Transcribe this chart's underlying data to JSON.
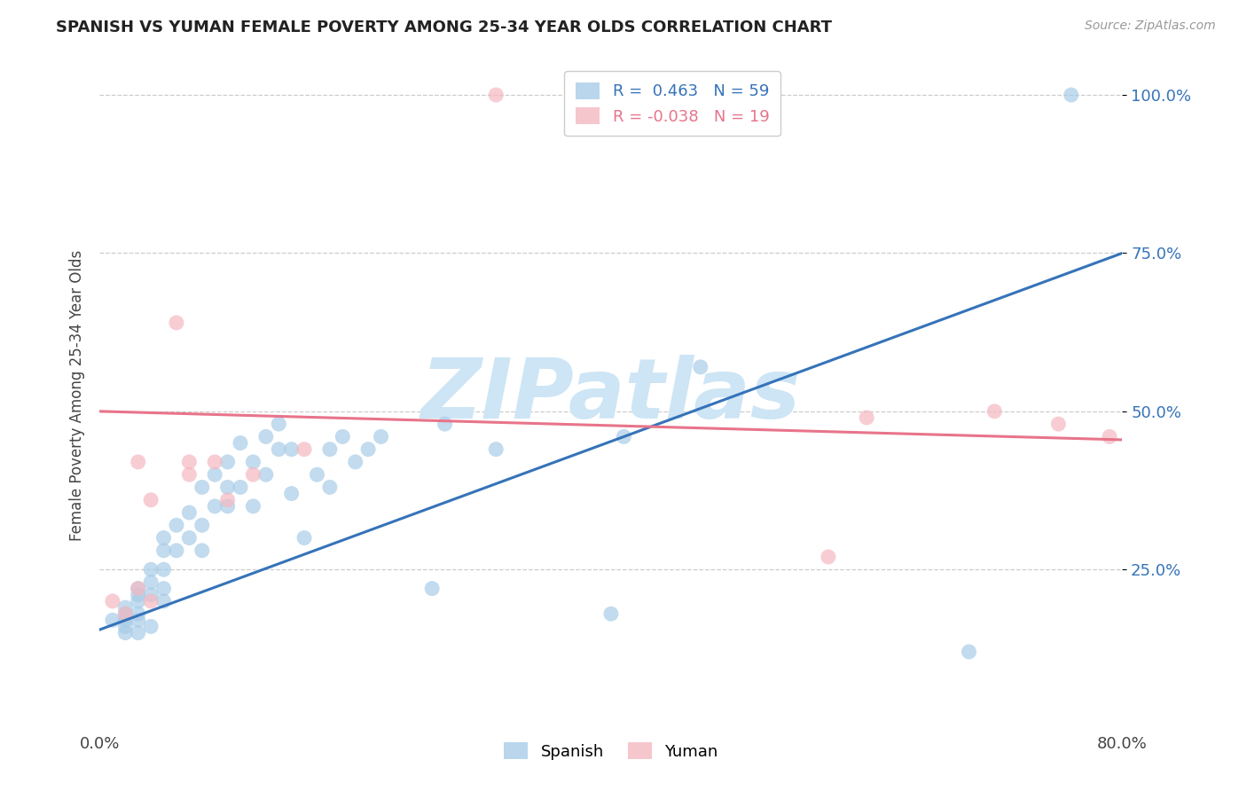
{
  "title": "SPANISH VS YUMAN FEMALE POVERTY AMONG 25-34 YEAR OLDS CORRELATION CHART",
  "source": "Source: ZipAtlas.com",
  "ylabel": "Female Poverty Among 25-34 Year Olds",
  "xlim": [
    0.0,
    0.8
  ],
  "ylim": [
    0.0,
    1.05
  ],
  "xticks": [
    0.0,
    0.1,
    0.2,
    0.3,
    0.4,
    0.5,
    0.6,
    0.7,
    0.8
  ],
  "xticklabels": [
    "0.0%",
    "",
    "",
    "",
    "",
    "",
    "",
    "",
    "80.0%"
  ],
  "ytick_positions": [
    0.25,
    0.5,
    0.75,
    1.0
  ],
  "ytick_labels": [
    "25.0%",
    "50.0%",
    "75.0%",
    "100.0%"
  ],
  "spanish_R": 0.463,
  "spanish_N": 59,
  "yuman_R": -0.038,
  "yuman_N": 19,
  "spanish_color": "#a8cce8",
  "yuman_color": "#f4b8c1",
  "trend_spanish_color": "#3573b9",
  "trend_yuman_color": "#e8748a",
  "watermark_text": "ZIPatlas",
  "watermark_color": "#cde5f5",
  "background_color": "#ffffff",
  "grid_color": "#cccccc",
  "spanish_x": [
    0.01,
    0.02,
    0.02,
    0.02,
    0.02,
    0.02,
    0.03,
    0.03,
    0.03,
    0.03,
    0.03,
    0.03,
    0.04,
    0.04,
    0.04,
    0.04,
    0.05,
    0.05,
    0.05,
    0.05,
    0.05,
    0.06,
    0.06,
    0.07,
    0.07,
    0.08,
    0.08,
    0.08,
    0.09,
    0.09,
    0.1,
    0.1,
    0.1,
    0.11,
    0.11,
    0.12,
    0.12,
    0.13,
    0.13,
    0.14,
    0.14,
    0.15,
    0.15,
    0.16,
    0.17,
    0.18,
    0.18,
    0.19,
    0.2,
    0.21,
    0.22,
    0.26,
    0.27,
    0.31,
    0.4,
    0.41,
    0.47,
    0.68,
    0.76
  ],
  "spanish_y": [
    0.17,
    0.15,
    0.16,
    0.17,
    0.18,
    0.19,
    0.15,
    0.17,
    0.18,
    0.2,
    0.21,
    0.22,
    0.16,
    0.21,
    0.23,
    0.25,
    0.2,
    0.22,
    0.25,
    0.28,
    0.3,
    0.28,
    0.32,
    0.3,
    0.34,
    0.28,
    0.32,
    0.38,
    0.35,
    0.4,
    0.35,
    0.38,
    0.42,
    0.38,
    0.45,
    0.35,
    0.42,
    0.4,
    0.46,
    0.44,
    0.48,
    0.37,
    0.44,
    0.3,
    0.4,
    0.38,
    0.44,
    0.46,
    0.42,
    0.44,
    0.46,
    0.22,
    0.48,
    0.44,
    0.18,
    0.46,
    0.57,
    0.12,
    1.0
  ],
  "yuman_x": [
    0.01,
    0.02,
    0.03,
    0.03,
    0.04,
    0.04,
    0.06,
    0.07,
    0.07,
    0.09,
    0.1,
    0.12,
    0.16,
    0.31,
    0.57,
    0.6,
    0.7,
    0.75,
    0.79
  ],
  "yuman_y": [
    0.2,
    0.18,
    0.22,
    0.42,
    0.2,
    0.36,
    0.64,
    0.4,
    0.42,
    0.42,
    0.36,
    0.4,
    0.44,
    1.0,
    0.27,
    0.49,
    0.5,
    0.48,
    0.46
  ],
  "trend_spanish_x0": 0.0,
  "trend_spanish_y0": 0.155,
  "trend_spanish_x1": 0.8,
  "trend_spanish_y1": 0.75,
  "trend_yuman_x0": 0.0,
  "trend_yuman_y0": 0.5,
  "trend_yuman_x1": 0.8,
  "trend_yuman_y1": 0.455
}
